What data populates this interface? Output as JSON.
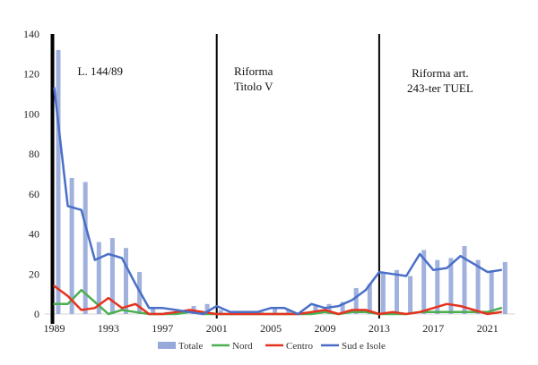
{
  "chart_data": {
    "type": "bar",
    "x": [
      1989,
      1990,
      1991,
      1992,
      1993,
      1994,
      1995,
      1996,
      1997,
      1998,
      1999,
      2000,
      2001,
      2002,
      2003,
      2004,
      2005,
      2006,
      2007,
      2008,
      2009,
      2010,
      2011,
      2012,
      2013,
      2014,
      2015,
      2016,
      2017,
      2018,
      2019,
      2020,
      2021,
      2022
    ],
    "series": [
      {
        "name": "Totale",
        "type": "bar",
        "color": "#97A9DA",
        "values": [
          132,
          68,
          66,
          36,
          38,
          33,
          21,
          3,
          1,
          1,
          4,
          5,
          2,
          1,
          1,
          1,
          3,
          2,
          1,
          4,
          5,
          6,
          13,
          15,
          21,
          22,
          19,
          32,
          27,
          28,
          34,
          27,
          21,
          26
        ]
      },
      {
        "name": "Nord",
        "type": "line",
        "color": "#4CAF50",
        "values": [
          5,
          5,
          12,
          6,
          0,
          2,
          1,
          0,
          0,
          0,
          1,
          0,
          0,
          0,
          0,
          0,
          0,
          0,
          0,
          0,
          1,
          0,
          1,
          1,
          0,
          0,
          0,
          1,
          1,
          1,
          1,
          1,
          1,
          3
        ]
      },
      {
        "name": "Centro",
        "type": "line",
        "color": "#E5331F",
        "values": [
          14,
          9,
          2,
          3,
          8,
          3,
          5,
          0,
          0,
          1,
          2,
          1,
          0,
          0,
          0,
          0,
          0,
          0,
          0,
          1,
          2,
          0,
          2,
          2,
          0,
          1,
          0,
          1,
          3,
          5,
          4,
          2,
          0,
          1
        ]
      },
      {
        "name": "Sud e Isole",
        "type": "line",
        "color": "#4A6FC7",
        "values": [
          113,
          54,
          52,
          27,
          30,
          28,
          15,
          3,
          3,
          2,
          1,
          0,
          4,
          1,
          1,
          1,
          3,
          3,
          0,
          5,
          3,
          4,
          7,
          12,
          21,
          20,
          19,
          30,
          22,
          23,
          29,
          25,
          21,
          22
        ]
      }
    ],
    "ylim": [
      0,
      140
    ],
    "yticks": [
      0,
      20,
      40,
      60,
      80,
      100,
      120,
      140
    ],
    "xticks": [
      1989,
      1993,
      1997,
      2001,
      2005,
      2009,
      2013,
      2017,
      2021
    ],
    "grid": false,
    "legend": "bottom",
    "annotations": [
      {
        "x": 1989,
        "lines": [
          "L. 144/89"
        ]
      },
      {
        "x": 2001,
        "lines": [
          "Riforma",
          "Titolo V"
        ]
      },
      {
        "x": 2013,
        "lines": [
          "Riforma art.",
          "243-ter TUEL"
        ]
      }
    ]
  }
}
